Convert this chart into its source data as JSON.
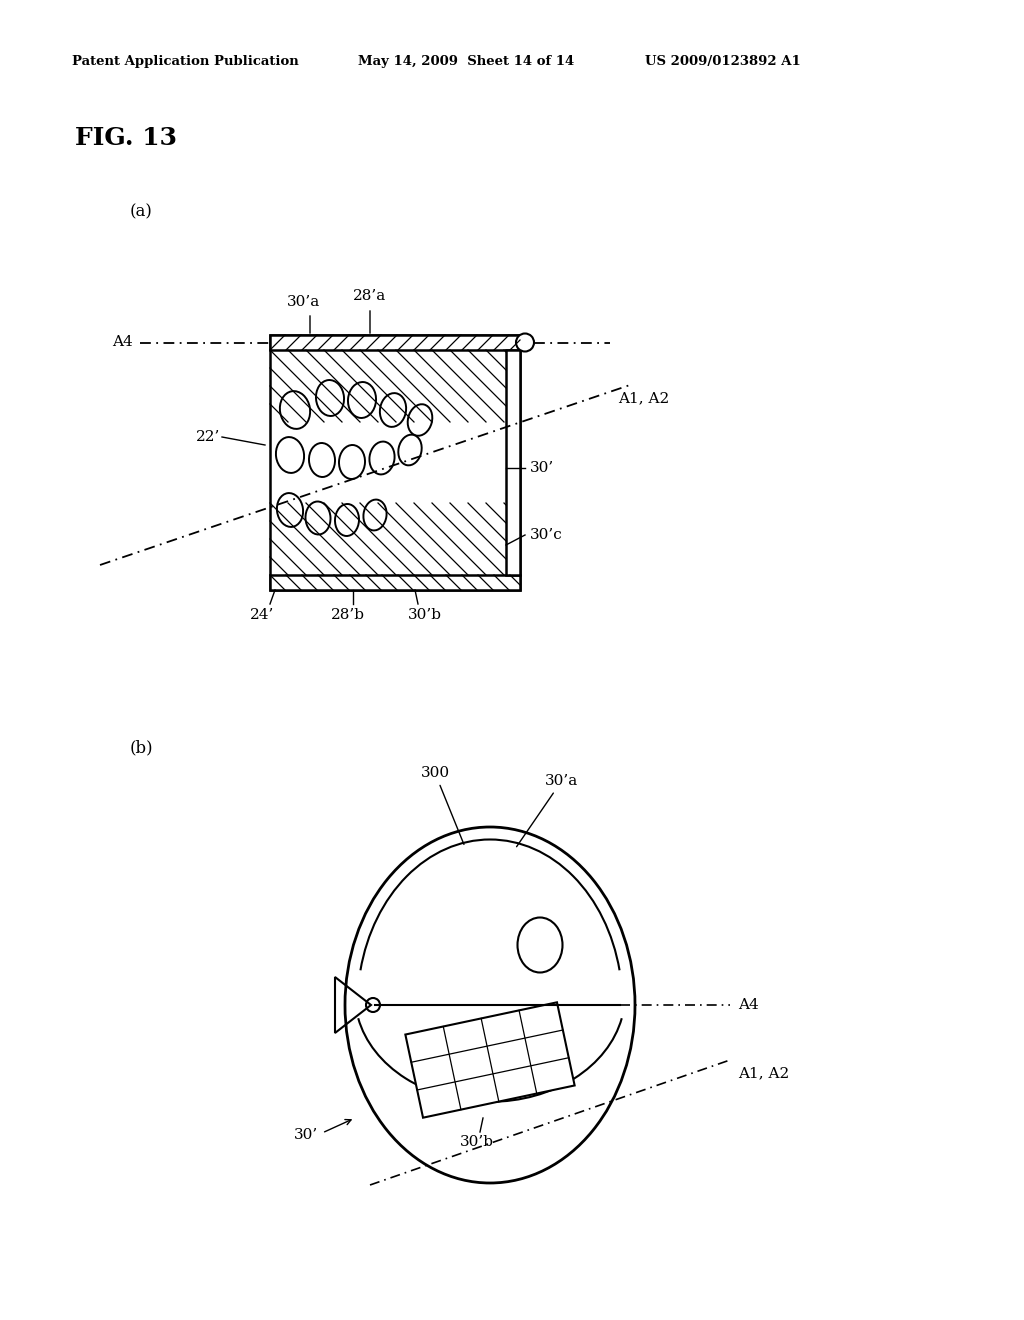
{
  "title": "FIG. 13",
  "header_left": "Patent Application Publication",
  "header_mid": "May 14, 2009  Sheet 14 of 14",
  "header_right": "US 2009/0123892 A1",
  "bg_color": "#ffffff",
  "label_a": "(a)",
  "label_b": "(b)"
}
